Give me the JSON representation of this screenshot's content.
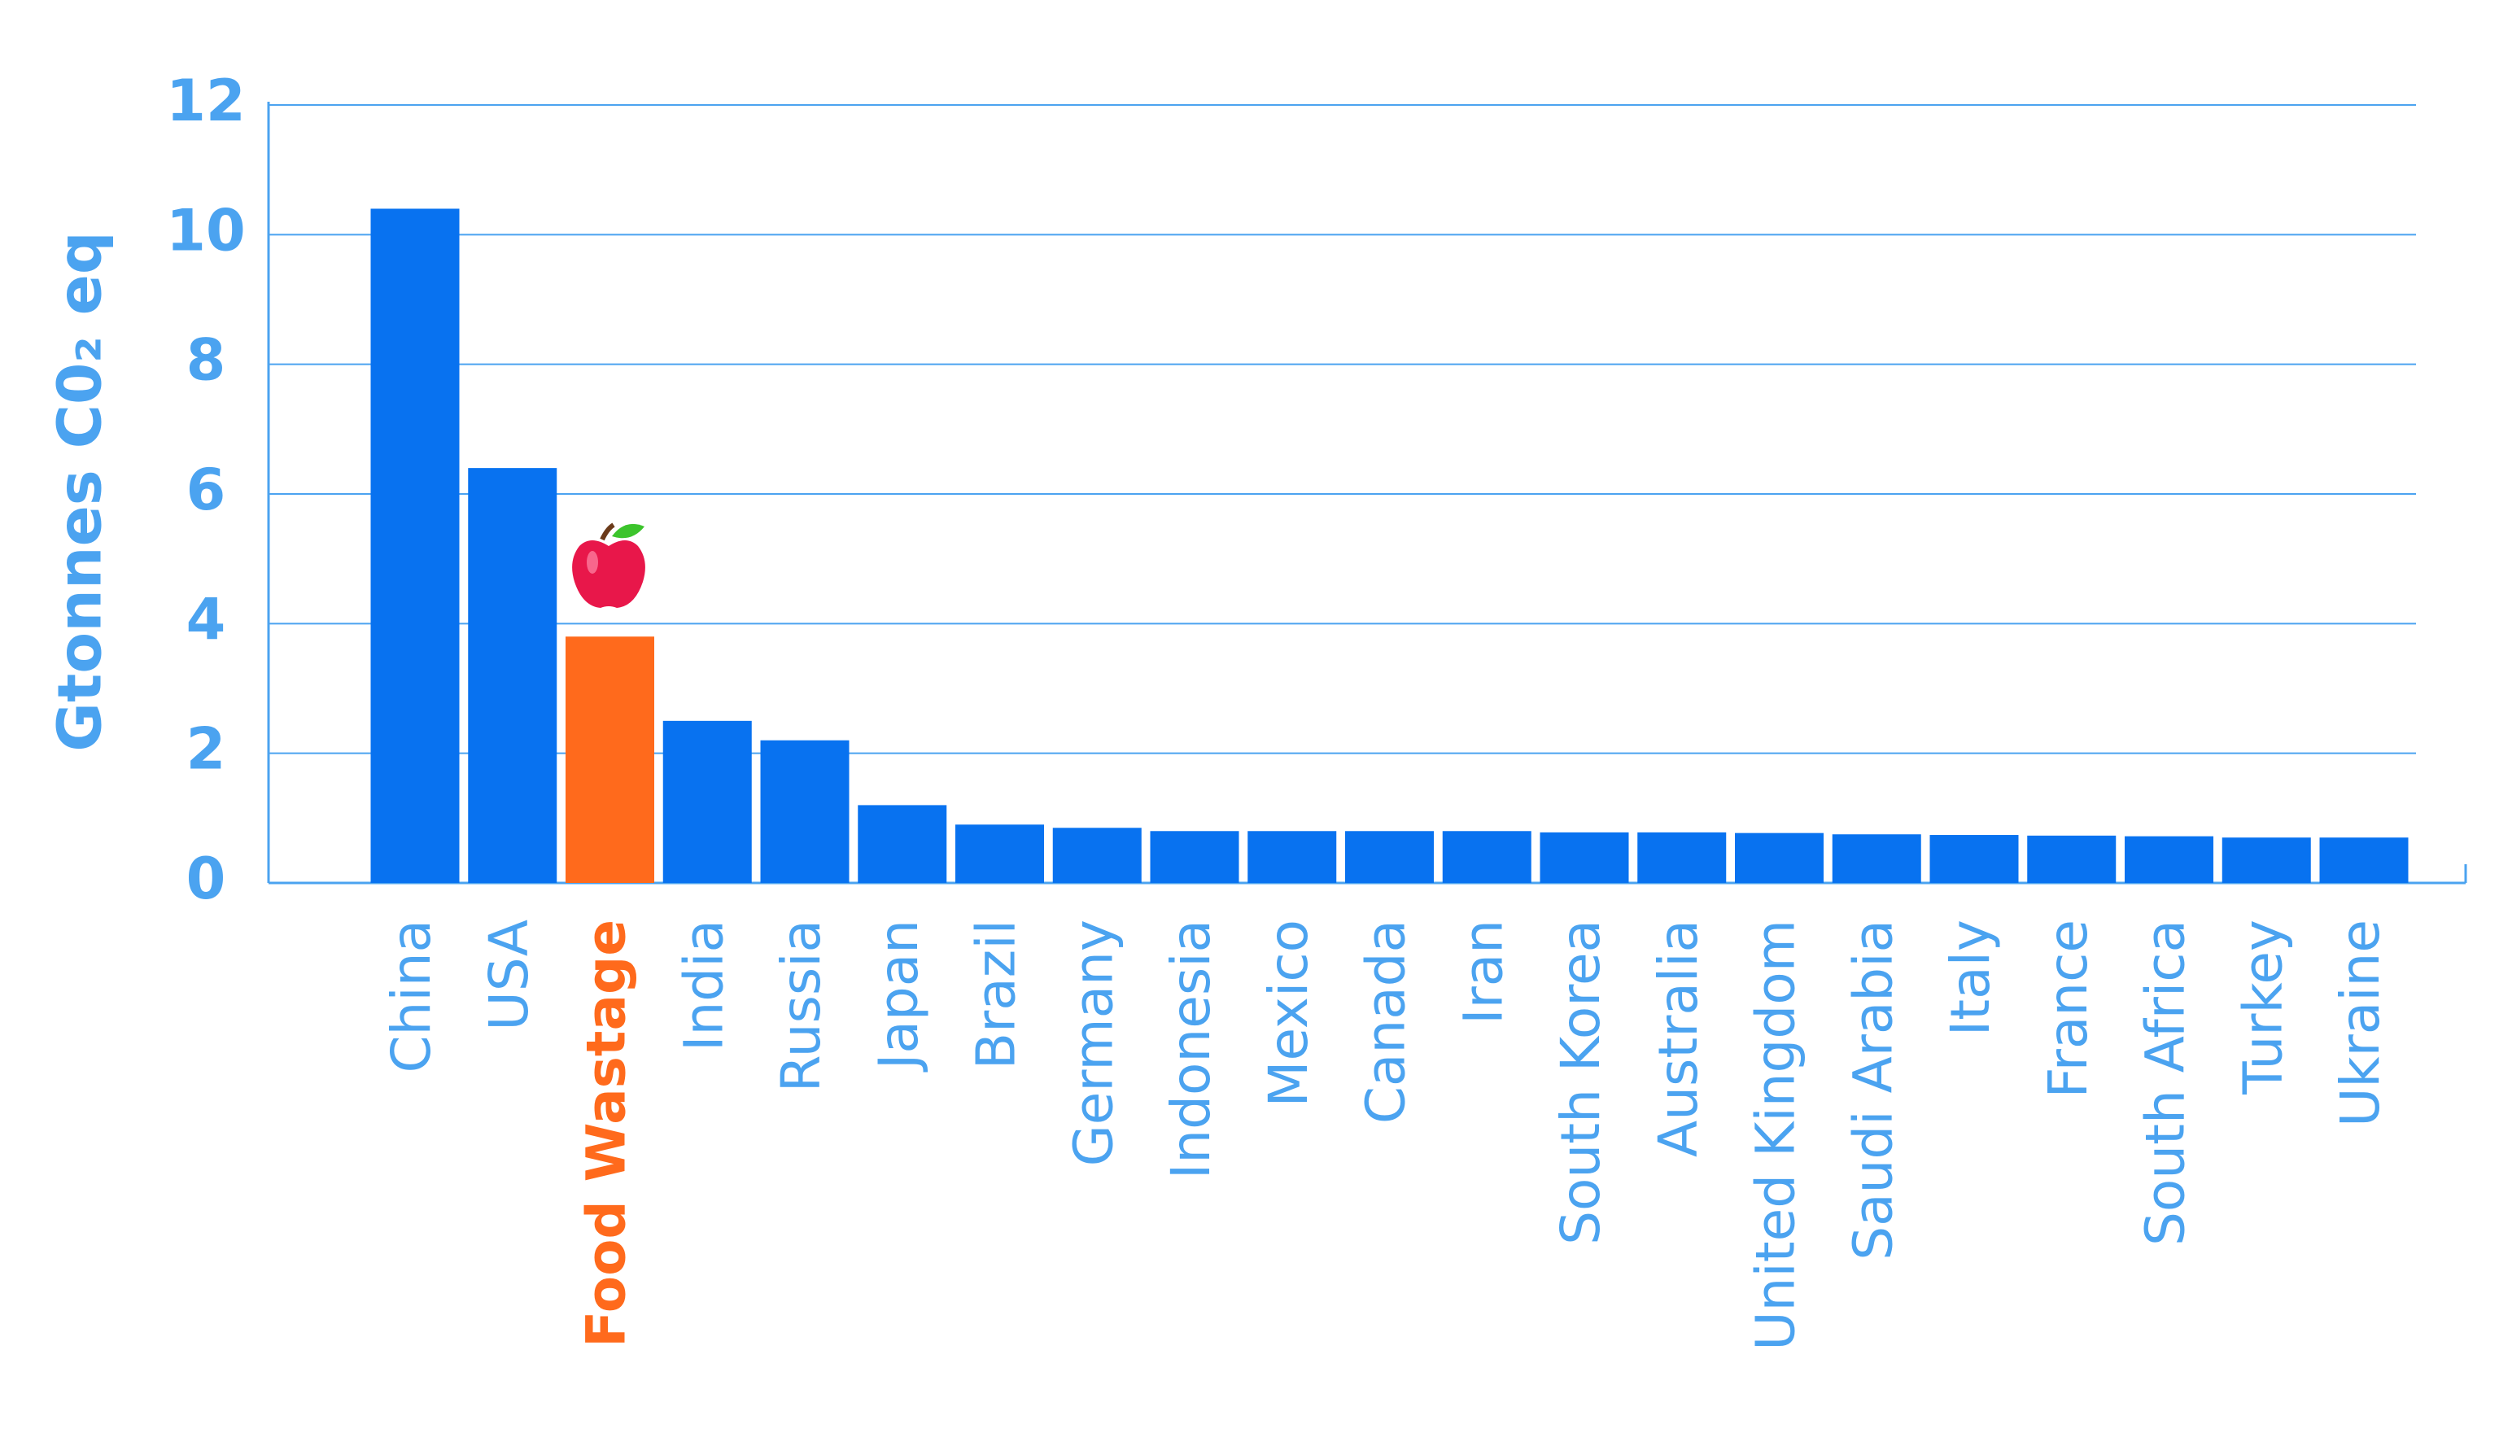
{
  "chart_data": {
    "type": "bar",
    "y_label": "Gtonnes C0₂ eq",
    "categories": [
      "China",
      "USA",
      "Food Wastage",
      "India",
      "Russia",
      "Japan",
      "Brazil",
      "Germany",
      "Indonesia",
      "Mexico",
      "Canada",
      "Iran",
      "South Korea",
      "Australia",
      "United Kingdom",
      "Saudi Arabia",
      "Italy",
      "France",
      "South Africa",
      "Turkey",
      "Ukraine"
    ],
    "values": [
      10.4,
      6.4,
      3.8,
      2.5,
      2.2,
      1.2,
      0.9,
      0.85,
      0.8,
      0.8,
      0.8,
      0.8,
      0.78,
      0.78,
      0.77,
      0.75,
      0.74,
      0.73,
      0.72,
      0.7,
      0.7
    ],
    "color": "#0872f0",
    "colors": [
      "#0872f0",
      "#0872f0",
      "#ff6a1c",
      "#0872f0",
      "#0872f0",
      "#0872f0",
      "#0872f0",
      "#0872f0",
      "#0872f0",
      "#0872f0",
      "#0872f0",
      "#0872f0",
      "#0872f0",
      "#0872f0",
      "#0872f0",
      "#0872f0",
      "#0872f0",
      "#0872f0",
      "#0872f0",
      "#0872f0",
      "#0872f0"
    ],
    "label_color": "#4ba3f0",
    "ylim": [
      0,
      12
    ],
    "yticks": [
      0,
      2,
      4,
      6,
      8,
      10,
      12
    ],
    "grid": true
  }
}
